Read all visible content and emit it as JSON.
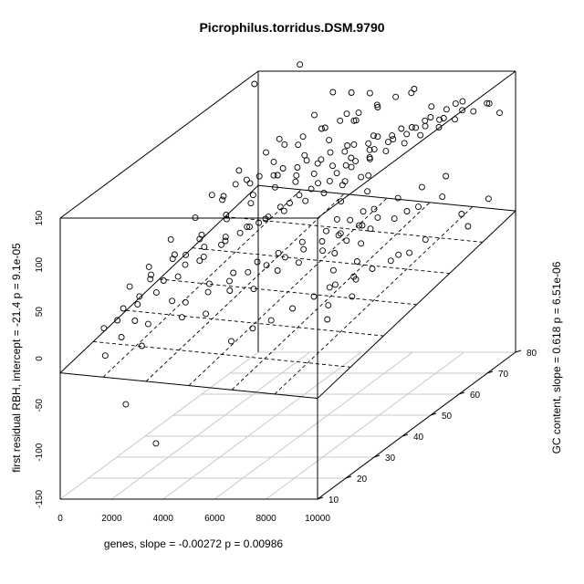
{
  "chart_data": {
    "type": "scatter",
    "title": "Picrophilus.torridus.DSM.9790",
    "xlabel": "genes, slope =  -0.00272 p =  0.00986",
    "ylabel": "GC content, slope =  0.618 p =  6.51e-06",
    "zlabel": "first residual RBH, intercept =  -21.4 p =  9.1e-05",
    "x_ticks": [
      "0",
      "2000",
      "4000",
      "6000",
      "8000",
      "10000"
    ],
    "y_ticks": [
      "10",
      "20",
      "30",
      "40",
      "50",
      "60",
      "70",
      "80"
    ],
    "z_ticks": [
      "-150",
      "-100",
      "-50",
      "0",
      "50",
      "100",
      "150"
    ],
    "xlim": [
      0,
      10000
    ],
    "ylim": [
      10,
      80
    ],
    "zlim": [
      -150,
      150
    ],
    "regression_plane": {
      "intercept": -21.4,
      "x_slope": -0.00272,
      "y_slope": 0.618
    },
    "series": [
      {
        "points": [
          [
            1200,
            15,
            -8
          ],
          [
            1500,
            18,
            5
          ],
          [
            1800,
            20,
            18
          ],
          [
            2100,
            22,
            10
          ],
          [
            2400,
            17,
            -2
          ],
          [
            2700,
            25,
            28
          ],
          [
            3000,
            27,
            22
          ],
          [
            3300,
            23,
            15
          ],
          [
            3600,
            30,
            35
          ],
          [
            3900,
            26,
            12
          ],
          [
            4200,
            33,
            40
          ],
          [
            4500,
            29,
            30
          ],
          [
            4800,
            36,
            45
          ],
          [
            5100,
            32,
            25
          ],
          [
            5400,
            38,
            50
          ],
          [
            5700,
            35,
            38
          ],
          [
            6000,
            41,
            55
          ],
          [
            6300,
            37,
            42
          ],
          [
            6600,
            44,
            60
          ],
          [
            6900,
            40,
            48
          ],
          [
            7200,
            47,
            65
          ],
          [
            7500,
            43,
            52
          ],
          [
            7800,
            50,
            70
          ],
          [
            8100,
            46,
            58
          ],
          [
            8400,
            53,
            75
          ],
          [
            8700,
            49,
            62
          ],
          [
            9000,
            56,
            80
          ],
          [
            9300,
            52,
            68
          ],
          [
            9600,
            59,
            85
          ],
          [
            9900,
            55,
            72
          ],
          [
            1300,
            30,
            40
          ],
          [
            1700,
            35,
            55
          ],
          [
            2200,
            40,
            65
          ],
          [
            2600,
            45,
            75
          ],
          [
            3100,
            50,
            85
          ],
          [
            3500,
            55,
            95
          ],
          [
            4000,
            60,
            105
          ],
          [
            4400,
            65,
            110
          ],
          [
            4900,
            70,
            120
          ],
          [
            5300,
            74,
            125
          ],
          [
            5800,
            68,
            108
          ],
          [
            6200,
            63,
            96
          ],
          [
            6700,
            58,
            88
          ],
          [
            7100,
            54,
            80
          ],
          [
            7600,
            48,
            72
          ],
          [
            8000,
            44,
            66
          ],
          [
            8500,
            39,
            58
          ],
          [
            8900,
            34,
            50
          ],
          [
            9400,
            29,
            42
          ],
          [
            9800,
            24,
            35
          ],
          [
            1000,
            40,
            60
          ],
          [
            1400,
            45,
            72
          ],
          [
            1900,
            50,
            80
          ],
          [
            2300,
            55,
            90
          ],
          [
            2800,
            60,
            98
          ],
          [
            3200,
            65,
            105
          ],
          [
            3700,
            70,
            112
          ],
          [
            4100,
            74,
            118
          ],
          [
            4600,
            72,
            115
          ],
          [
            5000,
            66,
            102
          ],
          [
            5500,
            61,
            92
          ],
          [
            5900,
            57,
            84
          ],
          [
            6400,
            51,
            76
          ],
          [
            6800,
            46,
            68
          ],
          [
            7300,
            42,
            60
          ],
          [
            7700,
            37,
            52
          ],
          [
            8200,
            32,
            45
          ],
          [
            8600,
            27,
            38
          ],
          [
            9100,
            22,
            30
          ],
          [
            9500,
            18,
            24
          ],
          [
            800,
            25,
            20
          ],
          [
            1100,
            28,
            26
          ],
          [
            1600,
            32,
            34
          ],
          [
            2000,
            36,
            42
          ],
          [
            2500,
            38,
            46
          ],
          [
            2900,
            42,
            54
          ],
          [
            3400,
            46,
            60
          ],
          [
            3800,
            48,
            64
          ],
          [
            4300,
            52,
            72
          ],
          [
            4700,
            56,
            78
          ],
          [
            5200,
            58,
            82
          ],
          [
            5600,
            62,
            88
          ],
          [
            6100,
            64,
            92
          ],
          [
            6500,
            66,
            96
          ],
          [
            7000,
            68,
            100
          ],
          [
            7400,
            70,
            104
          ],
          [
            7900,
            72,
            108
          ],
          [
            8300,
            74,
            112
          ],
          [
            8800,
            76,
            116
          ],
          [
            9200,
            78,
            120
          ],
          [
            600,
            20,
            10
          ],
          [
            900,
            22,
            14
          ],
          [
            1250,
            26,
            22
          ],
          [
            1650,
            29,
            28
          ],
          [
            2050,
            33,
            36
          ],
          [
            2450,
            37,
            44
          ],
          [
            2850,
            41,
            52
          ],
          [
            3250,
            44,
            58
          ],
          [
            3650,
            47,
            62
          ],
          [
            4050,
            51,
            70
          ],
          [
            4450,
            54,
            76
          ],
          [
            4850,
            57,
            82
          ],
          [
            5250,
            60,
            86
          ],
          [
            5650,
            63,
            92
          ],
          [
            6050,
            66,
            98
          ],
          [
            6450,
            69,
            102
          ],
          [
            6850,
            72,
            108
          ],
          [
            7250,
            75,
            112
          ],
          [
            7650,
            77,
            116
          ],
          [
            8050,
            79,
            120
          ],
          [
            2000,
            55,
            100
          ],
          [
            2500,
            60,
            108
          ],
          [
            3000,
            62,
            112
          ],
          [
            3500,
            64,
            116
          ],
          [
            4000,
            66,
            120
          ],
          [
            4500,
            68,
            124
          ],
          [
            5000,
            70,
            128
          ],
          [
            5500,
            72,
            132
          ],
          [
            6000,
            74,
            136
          ],
          [
            6500,
            76,
            140
          ],
          [
            1500,
            50,
            85
          ],
          [
            2200,
            52,
            92
          ],
          [
            2900,
            54,
            96
          ],
          [
            3600,
            56,
            100
          ],
          [
            4300,
            58,
            104
          ],
          [
            5000,
            60,
            108
          ],
          [
            5700,
            62,
            112
          ],
          [
            6400,
            64,
            116
          ],
          [
            7100,
            66,
            120
          ],
          [
            7800,
            68,
            124
          ],
          [
            3000,
            35,
            15
          ],
          [
            3500,
            38,
            20
          ],
          [
            4000,
            40,
            25
          ],
          [
            4500,
            42,
            28
          ],
          [
            5000,
            44,
            32
          ],
          [
            5500,
            46,
            36
          ],
          [
            6000,
            48,
            40
          ],
          [
            6500,
            50,
            44
          ],
          [
            7000,
            52,
            48
          ],
          [
            7500,
            54,
            52
          ],
          [
            2500,
            45,
            95
          ],
          [
            3200,
            48,
            102
          ],
          [
            3900,
            50,
            106
          ],
          [
            4600,
            52,
            110
          ],
          [
            5300,
            54,
            114
          ],
          [
            6000,
            56,
            118
          ],
          [
            6700,
            58,
            122
          ],
          [
            7400,
            60,
            126
          ],
          [
            8100,
            62,
            130
          ],
          [
            8800,
            64,
            134
          ],
          [
            4000,
            70,
            150
          ],
          [
            4500,
            72,
            145
          ],
          [
            5000,
            74,
            140
          ],
          [
            3500,
            68,
            130
          ],
          [
            6500,
            75,
            138
          ],
          [
            2800,
            62,
            118
          ],
          [
            7500,
            73,
            128
          ],
          [
            8000,
            77,
            122
          ],
          [
            9000,
            79,
            118
          ],
          [
            9600,
            78,
            110
          ],
          [
            4200,
            55,
            88
          ],
          [
            4700,
            57,
            92
          ],
          [
            5200,
            59,
            96
          ],
          [
            5700,
            61,
            100
          ],
          [
            6200,
            63,
            104
          ],
          [
            6700,
            65,
            108
          ],
          [
            7200,
            67,
            112
          ],
          [
            7700,
            69,
            116
          ],
          [
            8200,
            71,
            120
          ],
          [
            8700,
            73,
            124
          ],
          [
            1800,
            38,
            48
          ],
          [
            2300,
            40,
            52
          ],
          [
            2800,
            43,
            56
          ],
          [
            3300,
            46,
            60
          ],
          [
            3800,
            49,
            64
          ],
          [
            4300,
            50,
            68
          ],
          [
            4800,
            53,
            72
          ],
          [
            5300,
            55,
            76
          ],
          [
            5800,
            57,
            80
          ],
          [
            6300,
            59,
            84
          ],
          [
            500,
            30,
            32
          ],
          [
            700,
            35,
            42
          ],
          [
            1000,
            33,
            38
          ],
          [
            1400,
            37,
            46
          ],
          [
            1900,
            42,
            56
          ],
          [
            2400,
            47,
            66
          ],
          [
            2900,
            51,
            74
          ],
          [
            3400,
            55,
            82
          ],
          [
            3900,
            58,
            88
          ],
          [
            4400,
            61,
            94
          ],
          [
            5000,
            25,
            -15
          ],
          [
            5500,
            28,
            -8
          ],
          [
            6000,
            30,
            -4
          ],
          [
            6500,
            33,
            2
          ],
          [
            7000,
            36,
            8
          ],
          [
            7500,
            39,
            14
          ],
          [
            8000,
            41,
            18
          ],
          [
            8500,
            43,
            22
          ],
          [
            9000,
            45,
            26
          ],
          [
            9500,
            47,
            30
          ],
          [
            9000,
            70,
            20
          ],
          [
            9500,
            75,
            25
          ],
          [
            9800,
            65,
            18
          ],
          [
            8700,
            60,
            15
          ],
          [
            8200,
            55,
            10
          ],
          [
            2000,
            15,
            -60
          ],
          [
            3500,
            12,
            -95
          ],
          [
            1500,
            65,
            170
          ],
          [
            2500,
            72,
            175
          ],
          [
            6000,
            78,
            5
          ]
        ]
      }
    ]
  }
}
